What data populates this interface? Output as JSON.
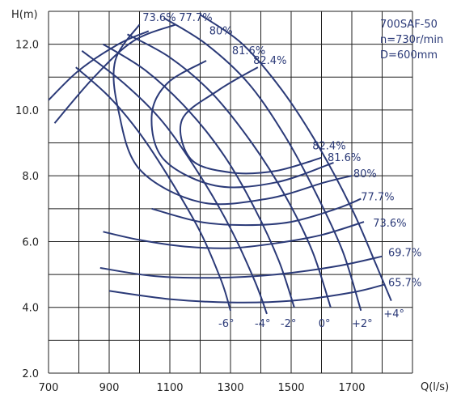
{
  "chart_data": {
    "type": "line",
    "title": "",
    "xlabel": "Q(l/s)",
    "ylabel": "H(m)",
    "xlim": [
      700,
      1900
    ],
    "ylim": [
      2.0,
      13.0
    ],
    "x_ticks": [
      700,
      900,
      1100,
      1300,
      1500,
      1700
    ],
    "y_ticks": [
      2.0,
      4.0,
      6.0,
      8.0,
      10.0,
      12.0
    ],
    "grid": true,
    "info_box": [
      "700SAF-50",
      "n=730r/min",
      "D=600mm"
    ],
    "blade_angle_curves": [
      {
        "label": "-6°",
        "points": [
          [
            790,
            11.3
          ],
          [
            900,
            10.4
          ],
          [
            1000,
            9.3
          ],
          [
            1100,
            7.9
          ],
          [
            1200,
            6.3
          ],
          [
            1270,
            4.8
          ],
          [
            1300,
            3.9
          ]
        ]
      },
      {
        "label": "-4°",
        "points": [
          [
            810,
            11.8
          ],
          [
            950,
            10.8
          ],
          [
            1080,
            9.6
          ],
          [
            1200,
            8.0
          ],
          [
            1300,
            6.4
          ],
          [
            1380,
            4.8
          ],
          [
            1420,
            3.8
          ]
        ]
      },
      {
        "label": "-2°",
        "points": [
          [
            880,
            12.0
          ],
          [
            1020,
            11.2
          ],
          [
            1160,
            10.0
          ],
          [
            1280,
            8.6
          ],
          [
            1380,
            7.0
          ],
          [
            1460,
            5.4
          ],
          [
            1510,
            4.0
          ]
        ]
      },
      {
        "label": "0°",
        "points": [
          [
            960,
            12.3
          ],
          [
            1100,
            11.6
          ],
          [
            1240,
            10.5
          ],
          [
            1370,
            9.0
          ],
          [
            1480,
            7.4
          ],
          [
            1570,
            5.7
          ],
          [
            1630,
            4.0
          ]
        ]
      },
      {
        "label": "+2°",
        "points": [
          [
            1080,
            12.8
          ],
          [
            1220,
            12.0
          ],
          [
            1360,
            10.8
          ],
          [
            1480,
            9.2
          ],
          [
            1580,
            7.5
          ],
          [
            1670,
            5.7
          ],
          [
            1730,
            3.9
          ]
        ]
      },
      {
        "label": "+4°",
        "points": [
          [
            1200,
            12.9
          ],
          [
            1340,
            12.0
          ],
          [
            1470,
            10.6
          ],
          [
            1590,
            8.9
          ],
          [
            1700,
            7.0
          ],
          [
            1780,
            5.3
          ],
          [
            1830,
            4.2
          ]
        ]
      }
    ],
    "efficiency_curves": [
      {
        "label": "65.7%",
        "points": [
          [
            900,
            4.5
          ],
          [
            1100,
            4.25
          ],
          [
            1300,
            4.15
          ],
          [
            1500,
            4.2
          ],
          [
            1700,
            4.45
          ],
          [
            1810,
            4.7
          ]
        ]
      },
      {
        "label": "69.7%",
        "points": [
          [
            870,
            5.2
          ],
          [
            1050,
            4.95
          ],
          [
            1250,
            4.9
          ],
          [
            1450,
            5.0
          ],
          [
            1650,
            5.25
          ],
          [
            1800,
            5.55
          ]
        ]
      },
      {
        "label": "73.6%",
        "points": [
          [
            880,
            6.3
          ],
          [
            1000,
            6.05
          ],
          [
            1150,
            5.85
          ],
          [
            1300,
            5.8
          ],
          [
            1450,
            5.95
          ],
          [
            1600,
            6.2
          ],
          [
            1740,
            6.6
          ]
        ]
      },
      {
        "label": "77.7%",
        "points": [
          [
            1040,
            7.0
          ],
          [
            1200,
            6.6
          ],
          [
            1350,
            6.5
          ],
          [
            1500,
            6.6
          ],
          [
            1650,
            7.0
          ],
          [
            1730,
            7.3
          ]
        ]
      },
      {
        "label": "80%",
        "points": [
          [
            1000,
            12.6
          ],
          [
            920,
            11.5
          ],
          [
            930,
            10.0
          ],
          [
            1000,
            8.2
          ],
          [
            1200,
            7.2
          ],
          [
            1420,
            7.3
          ],
          [
            1610,
            7.8
          ],
          [
            1700,
            8.0
          ]
        ]
      },
      {
        "label": "81.6%",
        "points": [
          [
            1220,
            11.5
          ],
          [
            1090,
            10.8
          ],
          [
            1040,
            9.8
          ],
          [
            1080,
            8.5
          ],
          [
            1250,
            7.7
          ],
          [
            1450,
            7.8
          ],
          [
            1640,
            8.4
          ]
        ]
      },
      {
        "label": "82.4%",
        "points": [
          [
            1390,
            11.3
          ],
          [
            1260,
            10.6
          ],
          [
            1140,
            9.7
          ],
          [
            1170,
            8.5
          ],
          [
            1300,
            8.1
          ],
          [
            1450,
            8.15
          ],
          [
            1600,
            8.55
          ]
        ]
      },
      {
        "label": "73.6%",
        "points": [
          [
            700,
            10.3
          ],
          [
            800,
            11.2
          ],
          [
            930,
            12.0
          ],
          [
            1030,
            12.4
          ]
        ]
      },
      {
        "label": "77.7%",
        "points": [
          [
            720,
            9.6
          ],
          [
            850,
            11.0
          ],
          [
            980,
            12.1
          ],
          [
            1120,
            12.6
          ]
        ]
      }
    ],
    "efficiency_label_positions": [
      {
        "text": "73.6%",
        "x": 1010,
        "y": 12.7
      },
      {
        "text": "77.7%",
        "x": 1130,
        "y": 12.7
      },
      {
        "text": "80%",
        "x": 1230,
        "y": 12.3
      },
      {
        "text": "81.6%",
        "x": 1305,
        "y": 11.7
      },
      {
        "text": "82.4%",
        "x": 1375,
        "y": 11.4
      },
      {
        "text": "82.4%",
        "x": 1570,
        "y": 8.8
      },
      {
        "text": "81.6%",
        "x": 1620,
        "y": 8.45
      },
      {
        "text": "80%",
        "x": 1705,
        "y": 7.95
      },
      {
        "text": "77.7%",
        "x": 1730,
        "y": 7.25
      },
      {
        "text": "73.6%",
        "x": 1770,
        "y": 6.45
      },
      {
        "text": "69.7%",
        "x": 1820,
        "y": 5.55
      },
      {
        "text": "65.7%",
        "x": 1820,
        "y": 4.65
      }
    ],
    "angle_label_positions": [
      {
        "text": "-6°",
        "x": 1260,
        "y": 3.4
      },
      {
        "text": "-4°",
        "x": 1380,
        "y": 3.4
      },
      {
        "text": "-2°",
        "x": 1465,
        "y": 3.4
      },
      {
        "text": "0°",
        "x": 1590,
        "y": 3.4
      },
      {
        "text": "+2°",
        "x": 1700,
        "y": 3.4
      },
      {
        "text": "+4°",
        "x": 1805,
        "y": 3.7
      }
    ]
  }
}
